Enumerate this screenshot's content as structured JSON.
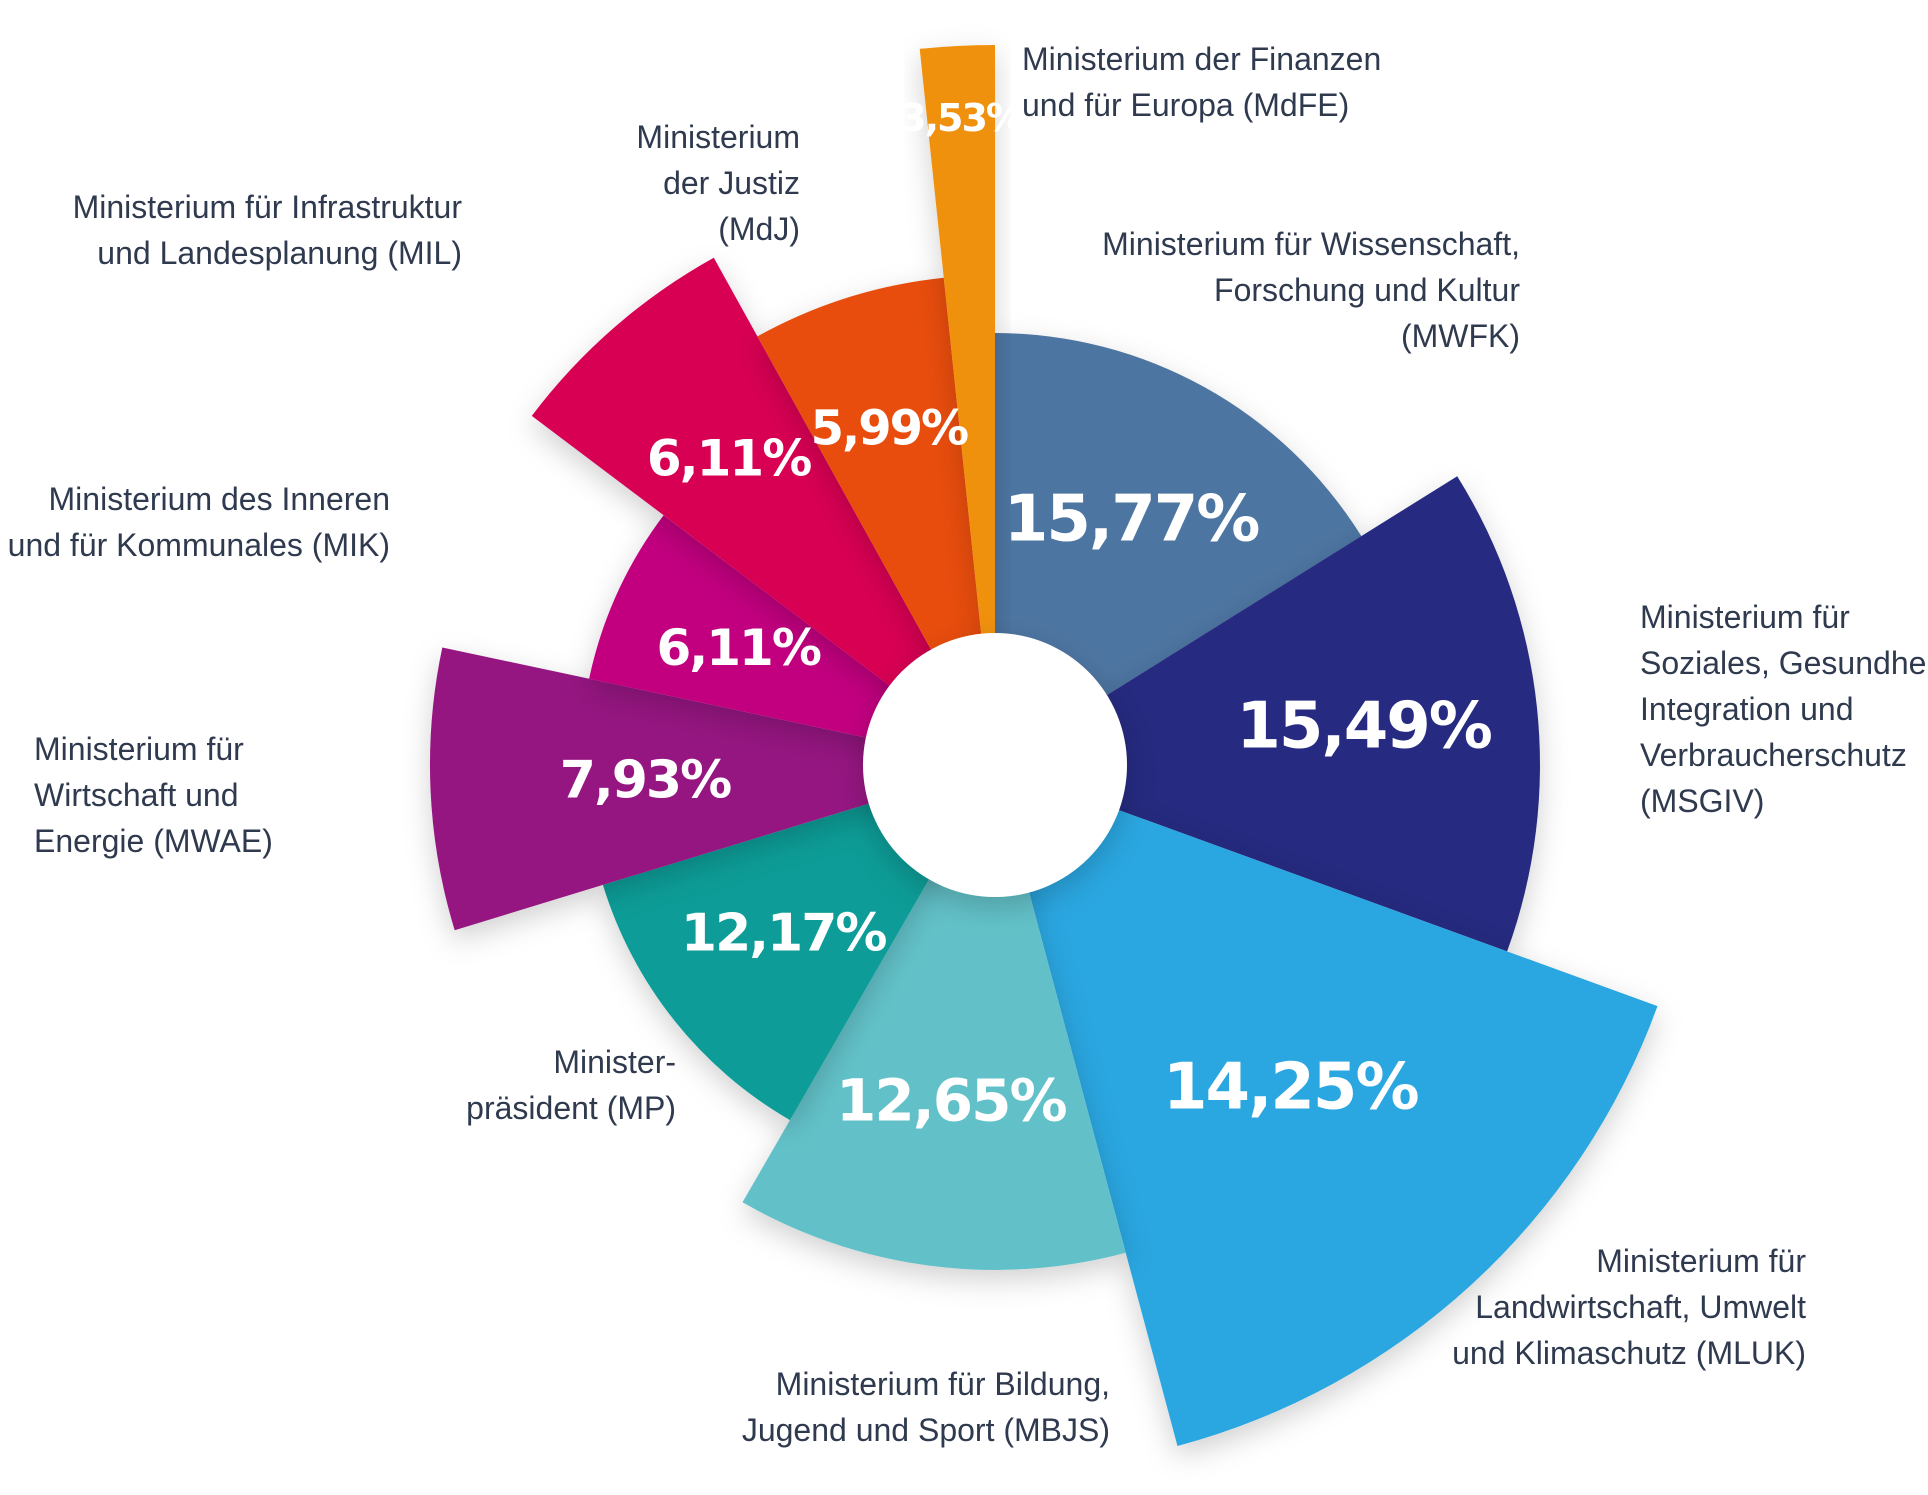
{
  "chart_data": {
    "type": "pie",
    "variant": "polar-area / rose with center hole",
    "slices": [
      {
        "label_lines": [
          "Ministerium für Wissenschaft,",
          "Forschung und Kultur",
          "(MWFK)"
        ],
        "value_label": "15,77%",
        "value": 15.77,
        "color": "#4e75a1"
      },
      {
        "label_lines": [
          "Ministerium für",
          "Soziales, Gesundheit,",
          "Integration und",
          "Verbraucherschutz",
          "(MSGIV)"
        ],
        "value_label": "15,49%",
        "value": 15.49,
        "color": "#262b80"
      },
      {
        "label_lines": [
          "Ministerium für",
          "Landwirtschaft, Umwelt",
          "und Klimaschutz (MLUK)"
        ],
        "value_label": "14,25%",
        "value": 14.25,
        "color": "#29a6e0"
      },
      {
        "label_lines": [
          "Ministerium für Bildung,",
          "Jugend und Sport (MBJS)"
        ],
        "value_label": "12,65%",
        "value": 12.65,
        "color": "#62c1c8"
      },
      {
        "label_lines": [
          "Minister-",
          "präsident (MP)"
        ],
        "value_label": "12,17%",
        "value": 12.17,
        "color": "#0c9c97"
      },
      {
        "label_lines": [
          "Ministerium für",
          "Wirtschaft und",
          "Energie (MWAE)"
        ],
        "value_label": "7,93%",
        "value": 7.93,
        "color": "#951681"
      },
      {
        "label_lines": [
          "Ministerium des Inneren",
          "und für Kommunales (MIK)"
        ],
        "value_label": "6,11%",
        "value": 6.11,
        "color": "#c2057f"
      },
      {
        "label_lines": [
          "Ministerium für Infrastruktur",
          "und Landesplanung (MIL)"
        ],
        "value_label": "6,11%",
        "value": 6.11,
        "color": "#d80552"
      },
      {
        "label_lines": [
          "Ministerium",
          "der Justiz",
          "(MdJ)"
        ],
        "value_label": "5,99%",
        "value": 5.99,
        "color": "#e84d0d"
      },
      {
        "label_lines": [
          "Ministerium der Finanzen",
          "und für Europa (MdFE)"
        ],
        "value_label": "3,53%",
        "value": 3.53,
        "color": "#f0910a"
      }
    ],
    "center_hole": true,
    "legend": "none"
  }
}
